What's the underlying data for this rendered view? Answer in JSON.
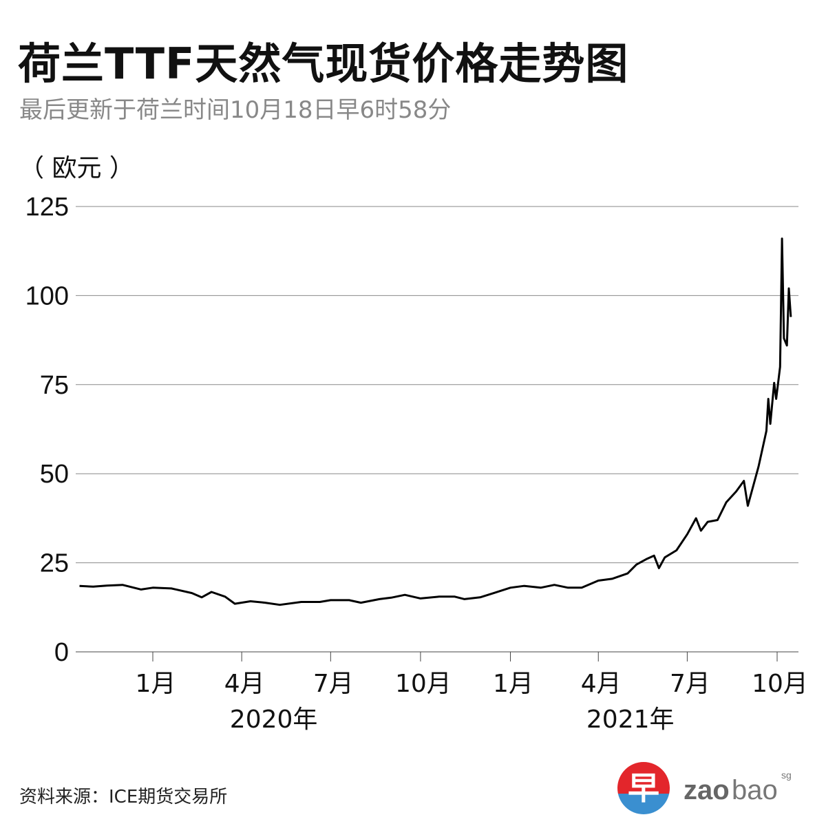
{
  "title": "荷兰TTF天然气现货价格走势图",
  "subtitle": "最后更新于荷兰时间10月18日早6时58分",
  "source": "资料来源：ICE期货交易所",
  "logo": {
    "text": "zaobao",
    "suffix": "sg",
    "glyph": "早",
    "colors": {
      "red": "#e3262b",
      "blue": "#3a8fd0",
      "gray": "#666666"
    }
  },
  "chart_data": {
    "type": "line",
    "title": "荷兰TTF天然气现货价格走势图",
    "ylabel": "（ 欧元 ）",
    "ylim": [
      0,
      125
    ],
    "yticks": [
      0,
      25,
      50,
      75,
      100,
      125
    ],
    "grid": true,
    "line_color": "#000000",
    "xticks": [
      {
        "date": "2020-01-01",
        "label": "1月"
      },
      {
        "date": "2020-04-01",
        "label": "4月"
      },
      {
        "date": "2020-07-01",
        "label": "7月"
      },
      {
        "date": "2020-10-01",
        "label": "10月"
      },
      {
        "date": "2021-01-01",
        "label": "1月"
      },
      {
        "date": "2021-04-01",
        "label": "4月"
      },
      {
        "date": "2021-07-01",
        "label": "7月"
      },
      {
        "date": "2021-10-01",
        "label": "10月"
      }
    ],
    "year_labels": [
      {
        "date": "2020-06-15",
        "label": "2020年"
      },
      {
        "date": "2021-06-15",
        "label": "2021年"
      }
    ],
    "points": [
      [
        "2019-10-18",
        18.5
      ],
      [
        "2019-11-01",
        18.3
      ],
      [
        "2019-11-15",
        18.6
      ],
      [
        "2019-12-01",
        18.8
      ],
      [
        "2019-12-20",
        17.5
      ],
      [
        "2020-01-01",
        18.0
      ],
      [
        "2020-01-20",
        17.8
      ],
      [
        "2020-02-10",
        16.5
      ],
      [
        "2020-02-20",
        15.3
      ],
      [
        "2020-03-01",
        16.8
      ],
      [
        "2020-03-15",
        15.5
      ],
      [
        "2020-03-25",
        13.5
      ],
      [
        "2020-04-10",
        14.2
      ],
      [
        "2020-04-25",
        13.8
      ],
      [
        "2020-05-10",
        13.2
      ],
      [
        "2020-06-01",
        14.0
      ],
      [
        "2020-06-20",
        14.0
      ],
      [
        "2020-07-01",
        14.5
      ],
      [
        "2020-07-20",
        14.5
      ],
      [
        "2020-08-01",
        13.8
      ],
      [
        "2020-08-20",
        14.8
      ],
      [
        "2020-09-01",
        15.2
      ],
      [
        "2020-09-15",
        16.0
      ],
      [
        "2020-10-01",
        15.0
      ],
      [
        "2020-10-20",
        15.5
      ],
      [
        "2020-11-05",
        15.5
      ],
      [
        "2020-11-15",
        14.8
      ],
      [
        "2020-12-01",
        15.3
      ],
      [
        "2020-12-15",
        16.5
      ],
      [
        "2021-01-01",
        18.0
      ],
      [
        "2021-01-15",
        18.5
      ],
      [
        "2021-02-01",
        18.0
      ],
      [
        "2021-02-15",
        18.8
      ],
      [
        "2021-03-01",
        18.0
      ],
      [
        "2021-03-15",
        18.0
      ],
      [
        "2021-04-01",
        20.0
      ],
      [
        "2021-04-15",
        20.5
      ],
      [
        "2021-05-01",
        22.0
      ],
      [
        "2021-05-10",
        24.5
      ],
      [
        "2021-05-20",
        26.0
      ],
      [
        "2021-05-28",
        27.0
      ],
      [
        "2021-06-02",
        23.5
      ],
      [
        "2021-06-08",
        26.5
      ],
      [
        "2021-06-20",
        28.5
      ],
      [
        "2021-07-01",
        33.0
      ],
      [
        "2021-07-10",
        37.5
      ],
      [
        "2021-07-15",
        34.0
      ],
      [
        "2021-07-22",
        36.5
      ],
      [
        "2021-08-01",
        37.0
      ],
      [
        "2021-08-10",
        42.0
      ],
      [
        "2021-08-20",
        45.0
      ],
      [
        "2021-08-28",
        48.0
      ],
      [
        "2021-09-01",
        41.0
      ],
      [
        "2021-09-06",
        46.0
      ],
      [
        "2021-09-12",
        52.0
      ],
      [
        "2021-09-20",
        62.0
      ],
      [
        "2021-09-22",
        71.0
      ],
      [
        "2021-09-24",
        64.0
      ],
      [
        "2021-09-28",
        75.5
      ],
      [
        "2021-09-30",
        71.0
      ],
      [
        "2021-10-04",
        80.0
      ],
      [
        "2021-10-05",
        97.5
      ],
      [
        "2021-10-06",
        116.0
      ],
      [
        "2021-10-08",
        88.0
      ],
      [
        "2021-10-11",
        86.0
      ],
      [
        "2021-10-13",
        102.0
      ],
      [
        "2021-10-15",
        94.0
      ]
    ]
  }
}
